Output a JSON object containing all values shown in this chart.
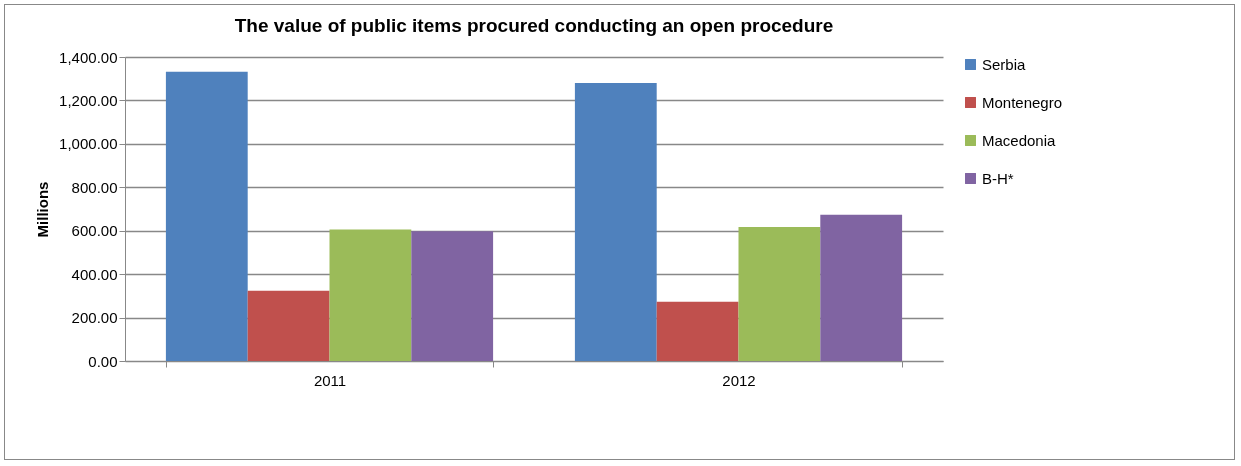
{
  "chart_data": {
    "type": "bar",
    "title": "The value of public items procured conducting an open procedure",
    "ylabel": "Millions",
    "categories": [
      "2011",
      "2012"
    ],
    "series": [
      {
        "name": "Serbia",
        "color": "#4f81bd",
        "values": [
          1332,
          1280
        ]
      },
      {
        "name": "Montenegro",
        "color": "#c0504d",
        "values": [
          324,
          273
        ]
      },
      {
        "name": "Macedonia",
        "color": "#9bbb59",
        "values": [
          606,
          617
        ]
      },
      {
        "name": "B-H*",
        "color": "#8064a2",
        "values": [
          597,
          674
        ]
      }
    ],
    "ylim": [
      0,
      1400
    ],
    "yticks": [
      {
        "value": 0,
        "label": "0.00"
      },
      {
        "value": 200,
        "label": "200.00"
      },
      {
        "value": 400,
        "label": "400.00"
      },
      {
        "value": 600,
        "label": "600.00"
      },
      {
        "value": 800,
        "label": "800.00"
      },
      {
        "value": 1000,
        "label": "1,000.00"
      },
      {
        "value": 1200,
        "label": "1,200.00"
      },
      {
        "value": 1400,
        "label": "1,400.00"
      }
    ],
    "grid": "y",
    "legend": "right"
  }
}
